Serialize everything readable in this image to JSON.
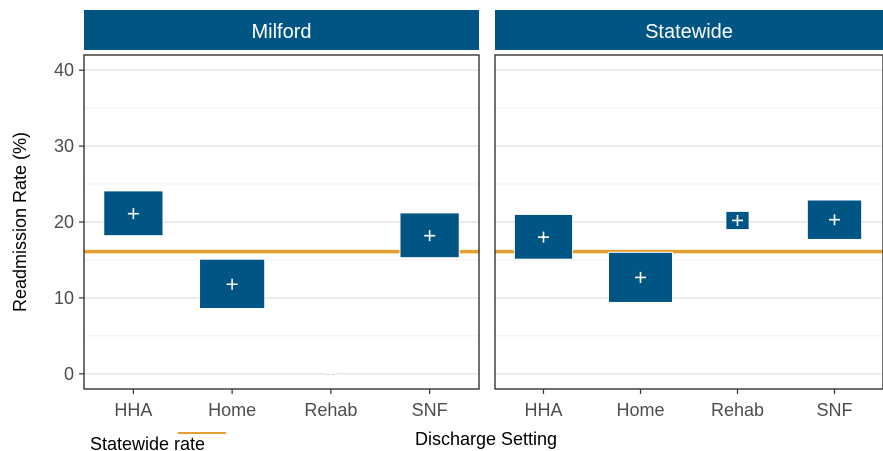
{
  "chart_data": {
    "type": "crossbar",
    "xlabel": "Discharge Setting",
    "ylabel": "Readmission Rate (%)",
    "ylim": [
      -2,
      42
    ],
    "y_ticks": [
      0,
      10,
      20,
      30,
      40
    ],
    "categories": [
      "HHA",
      "Home",
      "Rehab",
      "SNF"
    ],
    "reference_line": {
      "label": "Statewide rate",
      "value": 16.1,
      "color": "#E69F2E"
    },
    "box_color": "#005584",
    "marker_color": "#ffffff",
    "grid": true,
    "legend": {
      "position": "bottom-left",
      "entries": [
        "Statewide rate"
      ]
    },
    "panels": [
      {
        "title": "Milford",
        "points": [
          {
            "category": "HHA",
            "estimate": 21.1,
            "lower": 18.2,
            "upper": 24.1,
            "half_width": 0.3
          },
          {
            "category": "Home",
            "estimate": 11.8,
            "lower": 8.6,
            "upper": 15.1,
            "half_width": 0.33
          },
          {
            "category": "Rehab",
            "estimate": 0,
            "lower": 0,
            "upper": 0,
            "half_width": 0.05
          },
          {
            "category": "SNF",
            "estimate": 18.2,
            "lower": 15.3,
            "upper": 21.2,
            "half_width": 0.3
          }
        ]
      },
      {
        "title": "Statewide",
        "points": [
          {
            "category": "HHA",
            "estimate": 18.0,
            "lower": 15.1,
            "upper": 21.0,
            "half_width": 0.3
          },
          {
            "category": "Home",
            "estimate": 12.7,
            "lower": 9.4,
            "upper": 16.0,
            "half_width": 0.33
          },
          {
            "category": "Rehab",
            "estimate": 20.2,
            "lower": 19.0,
            "upper": 21.4,
            "half_width": 0.12
          },
          {
            "category": "SNF",
            "estimate": 20.3,
            "lower": 17.7,
            "upper": 22.9,
            "half_width": 0.28
          }
        ]
      }
    ]
  }
}
